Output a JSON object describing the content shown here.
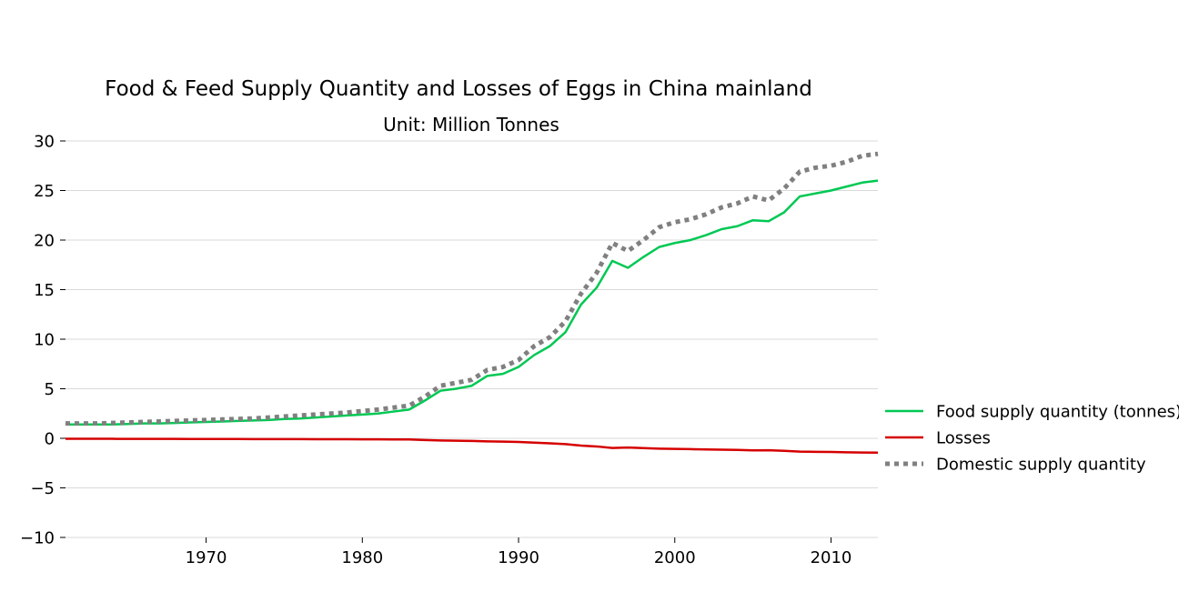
{
  "chart_data": {
    "type": "line",
    "title": "Food & Feed Supply Quantity and Losses of Eggs in China mainland",
    "subtitle": "Unit: Million Tonnes",
    "xlabel": "",
    "ylabel": "",
    "xlim": [
      1961,
      2013
    ],
    "ylim": [
      -10,
      30
    ],
    "x_ticks": [
      1970,
      1980,
      1990,
      2000,
      2010
    ],
    "y_ticks": [
      -10,
      -5,
      0,
      5,
      10,
      15,
      20,
      25,
      30
    ],
    "y_tick_labels": [
      "−10",
      "−5",
      "0",
      "5",
      "10",
      "15",
      "20",
      "25",
      "30"
    ],
    "grid": "horizontal",
    "legend_position": "right",
    "x": [
      1961,
      1962,
      1963,
      1964,
      1965,
      1966,
      1967,
      1968,
      1969,
      1970,
      1971,
      1972,
      1973,
      1974,
      1975,
      1976,
      1977,
      1978,
      1979,
      1980,
      1981,
      1982,
      1983,
      1984,
      1985,
      1986,
      1987,
      1988,
      1989,
      1990,
      1991,
      1992,
      1993,
      1994,
      1995,
      1996,
      1997,
      1998,
      1999,
      2000,
      2001,
      2002,
      2003,
      2004,
      2005,
      2006,
      2007,
      2008,
      2009,
      2010,
      2011,
      2012,
      2013
    ],
    "series": [
      {
        "name": "Food supply quantity (tonnes)",
        "color": "#00c853",
        "style": "solid",
        "values": [
          1.4,
          1.4,
          1.4,
          1.4,
          1.45,
          1.5,
          1.5,
          1.55,
          1.6,
          1.65,
          1.7,
          1.75,
          1.8,
          1.85,
          1.95,
          2.0,
          2.1,
          2.2,
          2.3,
          2.4,
          2.5,
          2.7,
          2.9,
          3.8,
          4.8,
          5.0,
          5.3,
          6.3,
          6.5,
          7.2,
          8.4,
          9.3,
          10.7,
          13.5,
          15.2,
          17.9,
          17.2,
          18.3,
          19.3,
          19.7,
          20.0,
          20.5,
          21.1,
          21.4,
          22.0,
          21.9,
          22.8,
          24.4,
          24.7,
          25.0,
          25.4,
          25.8,
          26.0
        ]
      },
      {
        "name": "Losses",
        "color": "#d50000",
        "style": "solid",
        "values": [
          -0.05,
          -0.05,
          -0.05,
          -0.05,
          -0.06,
          -0.06,
          -0.06,
          -0.06,
          -0.07,
          -0.07,
          -0.07,
          -0.07,
          -0.08,
          -0.08,
          -0.08,
          -0.08,
          -0.09,
          -0.09,
          -0.09,
          -0.1,
          -0.1,
          -0.11,
          -0.12,
          -0.17,
          -0.22,
          -0.24,
          -0.26,
          -0.31,
          -0.33,
          -0.37,
          -0.44,
          -0.5,
          -0.58,
          -0.73,
          -0.82,
          -0.97,
          -0.93,
          -0.99,
          -1.04,
          -1.07,
          -1.09,
          -1.12,
          -1.15,
          -1.17,
          -1.21,
          -1.2,
          -1.26,
          -1.34,
          -1.36,
          -1.38,
          -1.41,
          -1.43,
          -1.44
        ]
      },
      {
        "name": "Domestic supply quantity",
        "color": "#808080",
        "style": "dotted",
        "values": [
          1.5,
          1.5,
          1.5,
          1.55,
          1.6,
          1.65,
          1.7,
          1.75,
          1.8,
          1.85,
          1.9,
          1.95,
          2.0,
          2.1,
          2.2,
          2.3,
          2.4,
          2.5,
          2.6,
          2.75,
          2.9,
          3.1,
          3.3,
          4.2,
          5.3,
          5.6,
          5.9,
          6.9,
          7.2,
          7.9,
          9.3,
          10.2,
          11.8,
          14.6,
          16.7,
          19.7,
          18.9,
          20.0,
          21.3,
          21.8,
          22.1,
          22.6,
          23.3,
          23.7,
          24.4,
          24.0,
          25.2,
          26.9,
          27.3,
          27.5,
          27.9,
          28.5,
          28.7
        ]
      }
    ]
  }
}
